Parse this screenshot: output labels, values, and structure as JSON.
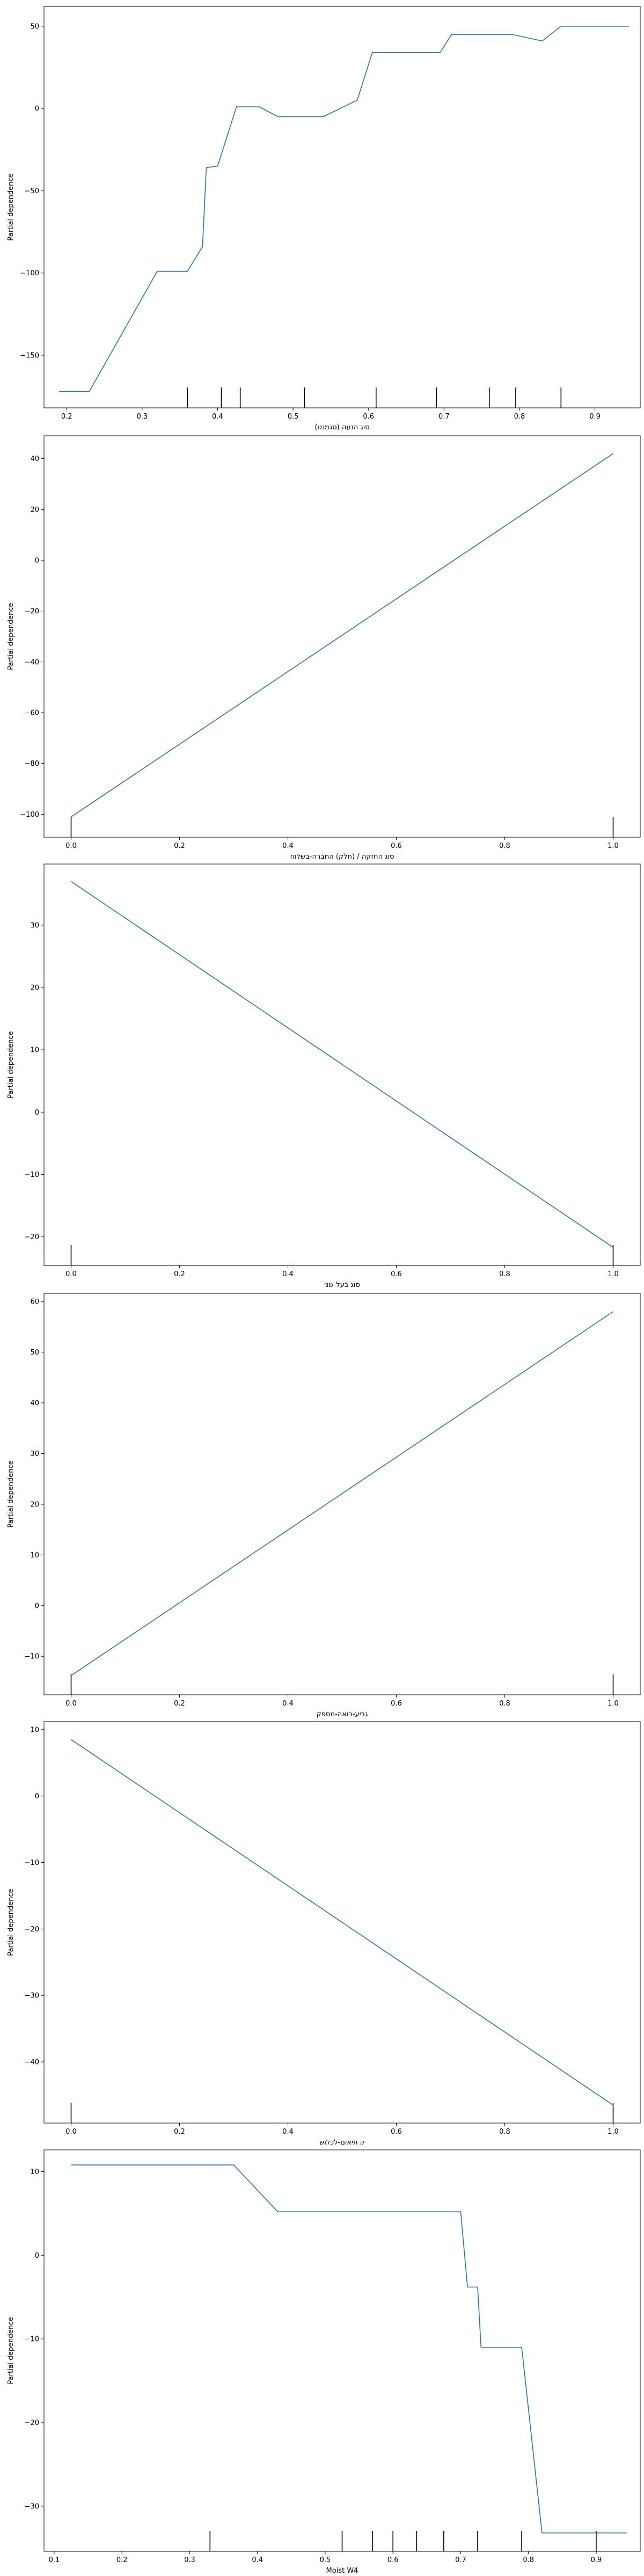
{
  "chart_data": [
    {
      "type": "line",
      "xlabel": "סוג הנעה (סגמנט)",
      "ylabel": "Partial dependence",
      "xlim": [
        0.17,
        0.96
      ],
      "ylim": [
        -182,
        62
      ],
      "xticks": [
        0.2,
        0.3,
        0.4,
        0.5,
        0.6,
        0.7,
        0.8,
        0.9
      ],
      "yticks": [
        50,
        0,
        -50,
        -100,
        -150
      ],
      "xtick_labels": [
        "0.2",
        "0.3",
        "0.4",
        "0.5",
        "0.6",
        "0.7",
        "0.8",
        "0.9"
      ],
      "ytick_labels": [
        "50",
        "0",
        "−50",
        "−100",
        "−150"
      ],
      "series": [
        {
          "color": "#1f77b4",
          "x": [
            0.19,
            0.23,
            0.32,
            0.36,
            0.38,
            0.385,
            0.4,
            0.425,
            0.455,
            0.48,
            0.54,
            0.585,
            0.605,
            0.695,
            0.71,
            0.79,
            0.83,
            0.855,
            0.945
          ],
          "y": [
            -172,
            -172,
            -99,
            -99,
            -84,
            -36,
            -35,
            1,
            1,
            -5,
            -5,
            5,
            34,
            34,
            45,
            45,
            41,
            50,
            50
          ]
        }
      ],
      "rug": [
        0.36,
        0.405,
        0.43,
        0.515,
        0.61,
        0.69,
        0.76,
        0.795,
        0.855
      ]
    },
    {
      "type": "line",
      "xlabel": "סוג החזקה / (חלק) החברה-בשלוח",
      "ylabel": "Partial dependence",
      "xlim": [
        -0.05,
        1.05
      ],
      "ylim": [
        -109,
        49
      ],
      "xticks": [
        0.0,
        0.2,
        0.4,
        0.6,
        0.8,
        1.0
      ],
      "yticks": [
        40,
        20,
        0,
        -20,
        -40,
        -60,
        -80,
        -100
      ],
      "xtick_labels": [
        "0.0",
        "0.2",
        "0.4",
        "0.6",
        "0.8",
        "1.0"
      ],
      "ytick_labels": [
        "40",
        "20",
        "0",
        "−20",
        "−40",
        "−60",
        "−80",
        "−100"
      ],
      "series": [
        {
          "color": "#1f77b4",
          "x": [
            0,
            1
          ],
          "y": [
            -101,
            42
          ]
        }
      ],
      "rug": [
        0,
        1
      ]
    },
    {
      "type": "line",
      "xlabel": "סוג בעל-שני",
      "ylabel": "Partial dependence",
      "xlim": [
        -0.05,
        1.05
      ],
      "ylim": [
        -24.6,
        39.8
      ],
      "xticks": [
        0.0,
        0.2,
        0.4,
        0.6,
        0.8,
        1.0
      ],
      "yticks": [
        30,
        20,
        10,
        0,
        -10,
        -20
      ],
      "xtick_labels": [
        "0.0",
        "0.2",
        "0.4",
        "0.6",
        "0.8",
        "1.0"
      ],
      "ytick_labels": [
        "30",
        "20",
        "10",
        "0",
        "−10",
        "−20"
      ],
      "series": [
        {
          "color": "#1f77b4",
          "x": [
            0,
            1
          ],
          "y": [
            37,
            -21.7
          ]
        }
      ],
      "rug": [
        0,
        1
      ]
    },
    {
      "type": "line",
      "xlabel": "גביע-רואה-מספק",
      "ylabel": "Partial dependence",
      "xlim": [
        -0.05,
        1.05
      ],
      "ylim": [
        -17.6,
        61.6
      ],
      "xticks": [
        0.0,
        0.2,
        0.4,
        0.6,
        0.8,
        1.0
      ],
      "yticks": [
        60,
        50,
        40,
        30,
        20,
        10,
        0,
        -10
      ],
      "xtick_labels": [
        "0.0",
        "0.2",
        "0.4",
        "0.6",
        "0.8",
        "1.0"
      ],
      "ytick_labels": [
        "60",
        "50",
        "40",
        "30",
        "20",
        "10",
        "0",
        "−10"
      ],
      "series": [
        {
          "color": "#1f77b4",
          "x": [
            0,
            1
          ],
          "y": [
            -13.8,
            58
          ]
        }
      ],
      "rug": [
        0,
        1
      ]
    },
    {
      "type": "line",
      "xlabel": "ק תיאום-לכלוש",
      "ylabel": "Partial dependence",
      "xlim": [
        -0.05,
        1.05
      ],
      "ylim": [
        -49.2,
        11.2
      ],
      "xticks": [
        0.0,
        0.2,
        0.4,
        0.6,
        0.8,
        1.0
      ],
      "yticks": [
        10,
        0,
        -10,
        -20,
        -30,
        -40
      ],
      "xtick_labels": [
        "0.0",
        "0.2",
        "0.4",
        "0.6",
        "0.8",
        "1.0"
      ],
      "ytick_labels": [
        "10",
        "0",
        "−10",
        "−20",
        "−30",
        "−40"
      ],
      "series": [
        {
          "color": "#1f77b4",
          "x": [
            0,
            1
          ],
          "y": [
            8.5,
            -46.5
          ]
        }
      ],
      "rug": [
        0,
        1
      ]
    },
    {
      "type": "line",
      "xlabel": "Moist W4",
      "ylabel": "Partial dependence",
      "xlim": [
        0.085,
        0.965
      ],
      "ylim": [
        -35.4,
        12.6
      ],
      "xticks": [
        0.1,
        0.2,
        0.3,
        0.4,
        0.5,
        0.6,
        0.7,
        0.8,
        0.9
      ],
      "yticks": [
        10,
        0,
        -10,
        -20,
        -30
      ],
      "xtick_labels": [
        "0.1",
        "0.2",
        "0.3",
        "0.4",
        "0.5",
        "0.6",
        "0.7",
        "0.8",
        "0.9"
      ],
      "ytick_labels": [
        "10",
        "0",
        "−10",
        "−20",
        "−30"
      ],
      "series": [
        {
          "color": "#1f77b4",
          "x": [
            0.125,
            0.365,
            0.43,
            0.7,
            0.71,
            0.725,
            0.73,
            0.79,
            0.82,
            0.945
          ],
          "y": [
            10.8,
            10.8,
            5.2,
            5.2,
            -3.8,
            -3.8,
            -11,
            -11,
            -33.2,
            -33.2
          ]
        }
      ],
      "rug": [
        0.33,
        0.525,
        0.57,
        0.6,
        0.635,
        0.675,
        0.725,
        0.79,
        0.9
      ]
    }
  ]
}
